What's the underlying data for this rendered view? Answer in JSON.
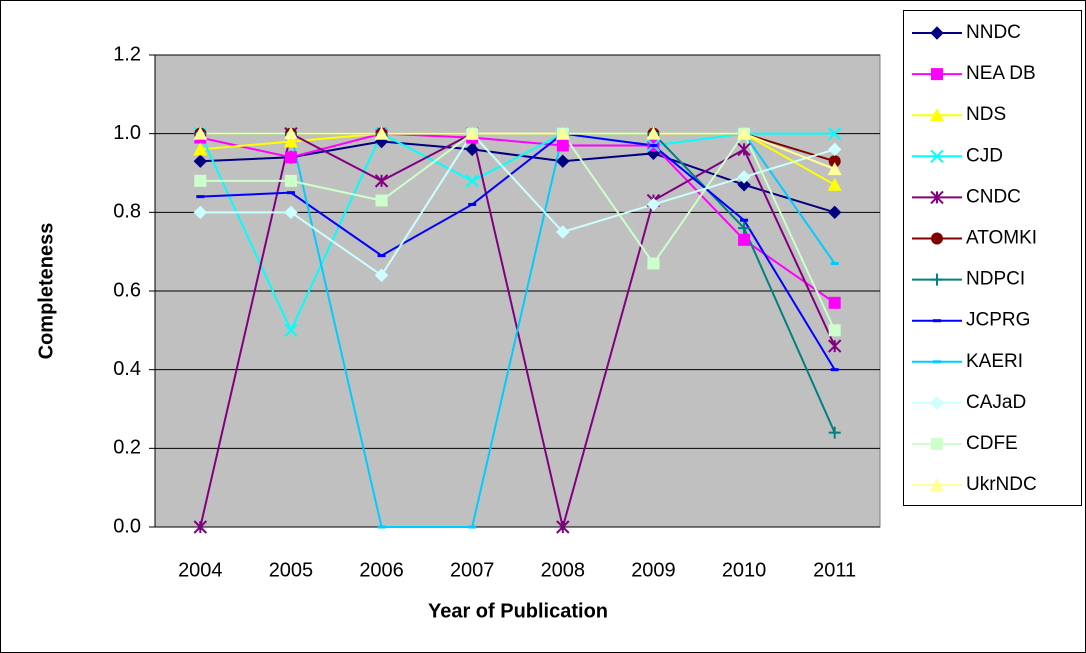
{
  "chart_data": {
    "type": "line",
    "x_label": "Year of Publication",
    "y_label": "Completeness",
    "categories": [
      "2004",
      "2005",
      "2006",
      "2007",
      "2008",
      "2009",
      "2010",
      "2011"
    ],
    "ylim": [
      0,
      1.2
    ],
    "yticks": [
      {
        "value": 0,
        "label": "0.0"
      },
      0.2,
      0.4,
      0.6,
      0.8,
      {
        "value": 1,
        "label": "1.0"
      },
      1.2
    ],
    "grid": true,
    "legend": "right",
    "series": [
      {
        "name": "NNDC",
        "color": "#000080",
        "marker": "diamond",
        "values": [
          0.93,
          0.94,
          0.98,
          0.96,
          0.93,
          0.95,
          0.87,
          0.8
        ]
      },
      {
        "name": "NEA DB",
        "color": "#FF00FF",
        "marker": "square",
        "values": [
          0.99,
          0.94,
          1.0,
          0.99,
          0.97,
          0.97,
          0.73,
          0.57
        ]
      },
      {
        "name": "NDS",
        "color": "#FFFF00",
        "marker": "triangle",
        "values": [
          0.96,
          0.98,
          1.0,
          1.0,
          1.0,
          1.0,
          1.0,
          0.87
        ]
      },
      {
        "name": "CJD",
        "color": "#00FFFF",
        "marker": "x",
        "values": [
          1.0,
          0.5,
          1.0,
          0.88,
          1.0,
          0.97,
          1.0,
          1.0
        ]
      },
      {
        "name": "CNDC",
        "color": "#800080",
        "marker": "asterisk",
        "values": [
          0.0,
          1.0,
          0.88,
          1.0,
          0.0,
          0.83,
          0.96,
          0.46
        ]
      },
      {
        "name": "ATOMKI",
        "color": "#800000",
        "marker": "circle",
        "values": [
          1.0,
          1.0,
          1.0,
          1.0,
          1.0,
          1.0,
          1.0,
          0.93
        ]
      },
      {
        "name": "NDPCI",
        "color": "#008080",
        "marker": "plus",
        "values": [
          1.0,
          1.0,
          1.0,
          1.0,
          1.0,
          1.0,
          0.76,
          0.24
        ]
      },
      {
        "name": "JCPRG",
        "color": "#0000FF",
        "marker": "dash",
        "values": [
          0.84,
          0.85,
          0.69,
          0.82,
          1.0,
          0.97,
          0.78,
          0.4
        ]
      },
      {
        "name": "KAERI",
        "color": "#00CCFF",
        "marker": "dash",
        "values": [
          1.0,
          1.0,
          0.0,
          0.0,
          1.0,
          1.0,
          1.0,
          0.67
        ]
      },
      {
        "name": "CAJaD",
        "color": "#CCFFFF",
        "marker": "diamond",
        "values": [
          0.8,
          0.8,
          0.64,
          1.0,
          0.75,
          0.82,
          0.89,
          0.96
        ]
      },
      {
        "name": "CDFE",
        "color": "#CCFFCC",
        "marker": "square",
        "values": [
          0.88,
          0.88,
          0.83,
          1.0,
          1.0,
          0.67,
          1.0,
          0.5
        ]
      },
      {
        "name": "UkrNDC",
        "color": "#FFFF99",
        "marker": "triangle",
        "values": [
          1.0,
          1.0,
          1.0,
          1.0,
          1.0,
          1.0,
          1.0,
          0.91
        ]
      }
    ]
  }
}
